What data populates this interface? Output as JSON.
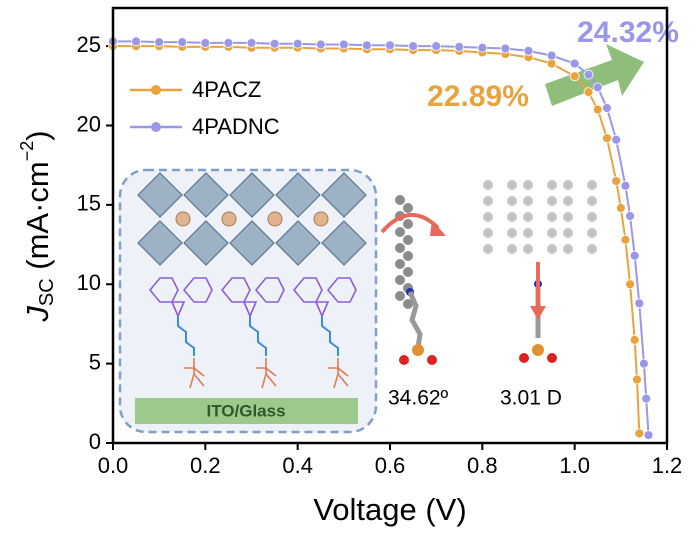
{
  "chart_data": {
    "type": "line",
    "xlabel": "Voltage (V)",
    "ylabel": [
      "J",
      "SC",
      " (mA·cm",
      "−2",
      ")"
    ],
    "xlim": [
      0,
      1.2
    ],
    "xticks": [
      {
        "value": 0,
        "label": "0.0"
      },
      0.2,
      0.4,
      0.6,
      0.8,
      {
        "value": 1,
        "label": "1.0"
      },
      1.2
    ],
    "ylim": [
      0,
      27.4
    ],
    "yticks": [
      0,
      5,
      10,
      15,
      20,
      25
    ],
    "legend": "upper left",
    "series": [
      {
        "name": "4PACZ",
        "color": "#e8a33d",
        "x": [
          0,
          0.05,
          0.1,
          0.15,
          0.2,
          0.25,
          0.3,
          0.35,
          0.4,
          0.45,
          0.5,
          0.55,
          0.6,
          0.65,
          0.7,
          0.75,
          0.8,
          0.85,
          0.9,
          0.95,
          1.0,
          1.03,
          1.05,
          1.07,
          1.09,
          1.1,
          1.11,
          1.12,
          1.13,
          1.135,
          1.14
        ],
        "values": [
          25.0,
          25.0,
          25.0,
          24.95,
          24.95,
          24.95,
          24.9,
          24.9,
          24.9,
          24.85,
          24.85,
          24.8,
          24.8,
          24.75,
          24.75,
          24.7,
          24.6,
          24.5,
          24.3,
          23.9,
          23.1,
          22.1,
          21.0,
          19.2,
          16.5,
          14.8,
          12.8,
          10.0,
          6.5,
          4.0,
          0.6
        ]
      },
      {
        "name": "4PADNC",
        "color": "#9b97e8",
        "x": [
          0,
          0.05,
          0.1,
          0.15,
          0.2,
          0.25,
          0.3,
          0.35,
          0.4,
          0.45,
          0.5,
          0.55,
          0.6,
          0.65,
          0.7,
          0.75,
          0.8,
          0.85,
          0.9,
          0.95,
          1.0,
          1.03,
          1.05,
          1.07,
          1.09,
          1.11,
          1.12,
          1.13,
          1.14,
          1.15,
          1.155,
          1.16
        ],
        "values": [
          25.3,
          25.3,
          25.25,
          25.25,
          25.2,
          25.2,
          25.2,
          25.15,
          25.15,
          25.1,
          25.1,
          25.05,
          25.05,
          25.0,
          25.0,
          24.95,
          24.9,
          24.85,
          24.7,
          24.4,
          23.9,
          23.2,
          22.4,
          21.1,
          19.1,
          16.2,
          14.3,
          11.8,
          8.8,
          5.0,
          2.8,
          0.5
        ]
      }
    ],
    "annotations": [
      "24.32%",
      "22.89%"
    ]
  },
  "inset": {
    "substrate": "ITO/Glass",
    "angle": "34.62º",
    "dipole": "3.01 D"
  }
}
